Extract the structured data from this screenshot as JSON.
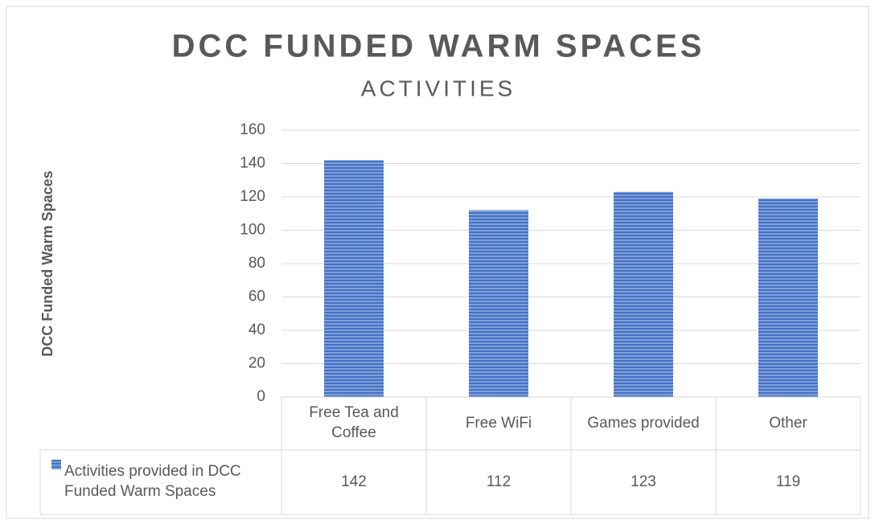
{
  "chart_data": {
    "type": "bar",
    "title": "DCC FUNDED WARM SPACES",
    "subtitle": "ACTIVITIES",
    "y_label": "DCC Funded Warm Spaces",
    "categories": [
      "Free Tea and Coffee",
      "Free WiFi",
      "Games provided",
      "Other"
    ],
    "series": [
      {
        "name": "Activities provided in DCC Funded Warm Spaces",
        "color": "#4472c4",
        "values": [
          142,
          112,
          123,
          119
        ]
      }
    ],
    "ylim": [
      0,
      160
    ],
    "yticks": [
      0,
      20,
      40,
      60,
      80,
      100,
      120,
      140,
      160
    ],
    "grid": true,
    "data_table": true
  }
}
